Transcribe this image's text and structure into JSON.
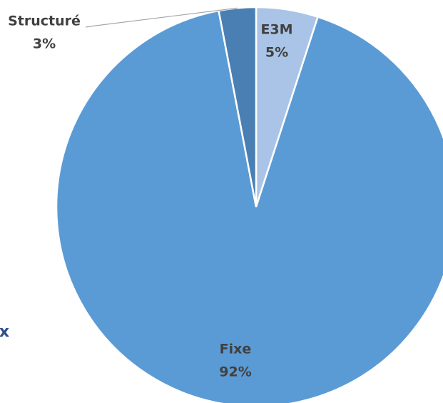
{
  "chart_data": {
    "type": "pie",
    "categories": [
      "E3M",
      "Fixe",
      "Structuré"
    ],
    "values": [
      5,
      92,
      3
    ],
    "value_labels": [
      "5%",
      "92%",
      "3%"
    ],
    "colors": [
      "#a9c4e6",
      "#5b9bd5",
      "#4a7fb3"
    ],
    "annotations": [
      "x"
    ]
  }
}
